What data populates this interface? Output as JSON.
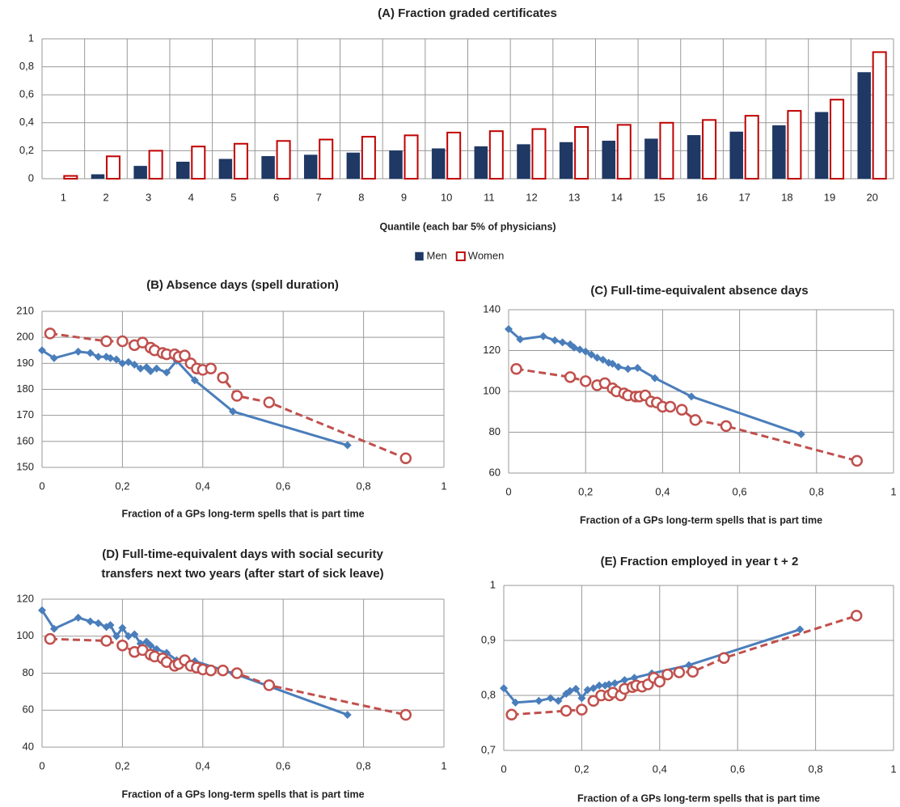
{
  "chart_data": [
    {
      "type": "bar",
      "title": "(A) Fraction graded certificates",
      "x_label": "Quantile (each bar 5% of physicians)",
      "categories": [
        "1",
        "2",
        "3",
        "4",
        "5",
        "6",
        "7",
        "8",
        "9",
        "10",
        "11",
        "12",
        "13",
        "14",
        "15",
        "16",
        "17",
        "18",
        "19",
        "20"
      ],
      "series": [
        {
          "name": "Men",
          "color": "#1f3864",
          "values": [
            0,
            0.03,
            0.09,
            0.12,
            0.14,
            0.16,
            0.17,
            0.185,
            0.2,
            0.215,
            0.23,
            0.245,
            0.26,
            0.27,
            0.285,
            0.31,
            0.335,
            0.38,
            0.475,
            0.76
          ]
        },
        {
          "name": "Women",
          "color": "#c00000",
          "values": [
            0.02,
            0.16,
            0.2,
            0.23,
            0.25,
            0.27,
            0.28,
            0.3,
            0.31,
            0.33,
            0.34,
            0.355,
            0.37,
            0.385,
            0.4,
            0.42,
            0.45,
            0.485,
            0.565,
            0.905
          ]
        }
      ],
      "ylim": [
        0,
        1
      ],
      "yticks": [
        0,
        {
          "value": 0.2,
          "label": "0,2"
        },
        {
          "value": 0.4,
          "label": "0,4"
        },
        {
          "value": 0.6,
          "label": "0,6"
        },
        {
          "value": 0.8,
          "label": "0,8"
        },
        1
      ],
      "grid": true,
      "legend": "bottom"
    },
    {
      "type": "line",
      "title": "(B) Absence days (spell duration)",
      "x_label": "Fraction of a GPs long-term spells that is part time",
      "series": [
        {
          "color": "#4a7ebb",
          "marker": "diamond",
          "dashed": false,
          "x": [
            0,
            0.03,
            0.09,
            0.12,
            0.14,
            0.16,
            0.17,
            0.185,
            0.2,
            0.215,
            0.23,
            0.245,
            0.26,
            0.27,
            0.285,
            0.31,
            0.335,
            0.38,
            0.475,
            0.76
          ],
          "values": [
            195,
            192,
            194.5,
            194,
            192.5,
            192.5,
            192,
            191.5,
            190,
            190.5,
            189.5,
            188,
            188.5,
            187,
            188,
            186.5,
            191,
            183.5,
            171.5,
            158.5
          ]
        },
        {
          "color": "#c0504d",
          "marker": "circle",
          "dashed": true,
          "x": [
            0.02,
            0.16,
            0.2,
            0.23,
            0.25,
            0.27,
            0.28,
            0.3,
            0.31,
            0.33,
            0.34,
            0.355,
            0.37,
            0.385,
            0.4,
            0.42,
            0.45,
            0.485,
            0.565,
            0.905
          ],
          "values": [
            201.5,
            198.5,
            198.5,
            197,
            198,
            196,
            195,
            194,
            193.5,
            193.5,
            192.5,
            193,
            190,
            188,
            187.5,
            188,
            184.5,
            177.5,
            175,
            153.5
          ]
        }
      ],
      "xlim": [
        0,
        1
      ],
      "xticks": [
        0,
        {
          "value": 0.2,
          "label": "0,2"
        },
        {
          "value": 0.4,
          "label": "0,4"
        },
        {
          "value": 0.6,
          "label": "0,6"
        },
        {
          "value": 0.8,
          "label": "0,8"
        },
        1
      ],
      "ylim": [
        150,
        210
      ],
      "yticks": [
        150,
        160,
        170,
        180,
        190,
        200,
        210
      ],
      "grid": true
    },
    {
      "type": "line",
      "title": "(C) Full-time-equivalent absence days",
      "x_label": "Fraction of a GPs long-term spells that is part time",
      "series": [
        {
          "color": "#4a7ebb",
          "marker": "diamond",
          "dashed": false,
          "x": [
            0,
            0.03,
            0.09,
            0.12,
            0.14,
            0.16,
            0.17,
            0.185,
            0.2,
            0.215,
            0.23,
            0.245,
            0.26,
            0.27,
            0.285,
            0.31,
            0.335,
            0.38,
            0.475,
            0.76
          ],
          "values": [
            130.5,
            125.5,
            127,
            125,
            124,
            123,
            121.5,
            120.5,
            119.5,
            118,
            116.5,
            115.5,
            114,
            113.5,
            112,
            111,
            111.5,
            106.5,
            97.5,
            79
          ]
        },
        {
          "color": "#c0504d",
          "marker": "circle",
          "dashed": true,
          "x": [
            0.02,
            0.16,
            0.2,
            0.23,
            0.25,
            0.27,
            0.28,
            0.3,
            0.31,
            0.33,
            0.34,
            0.355,
            0.37,
            0.385,
            0.4,
            0.42,
            0.45,
            0.485,
            0.565,
            0.905
          ],
          "values": [
            111,
            107,
            105,
            103,
            104,
            101.5,
            100,
            99,
            98,
            97.5,
            97.5,
            98,
            95,
            94.5,
            92.5,
            92.5,
            91,
            86,
            83,
            66
          ]
        }
      ],
      "xlim": [
        0,
        1
      ],
      "xticks": [
        0,
        {
          "value": 0.2,
          "label": "0,2"
        },
        {
          "value": 0.4,
          "label": "0,4"
        },
        {
          "value": 0.6,
          "label": "0,6"
        },
        {
          "value": 0.8,
          "label": "0,8"
        },
        1
      ],
      "ylim": [
        60,
        140
      ],
      "yticks": [
        60,
        80,
        100,
        120,
        140
      ],
      "grid": true
    },
    {
      "type": "line",
      "title": [
        "(D) Full-time-equivalent days with social security",
        "transfers next two years (after start of sick leave)"
      ],
      "x_label": "Fraction of a GPs long-term spells that is part time",
      "series": [
        {
          "color": "#4a7ebb",
          "marker": "diamond",
          "dashed": false,
          "x": [
            0,
            0.03,
            0.09,
            0.12,
            0.14,
            0.16,
            0.17,
            0.185,
            0.2,
            0.215,
            0.23,
            0.245,
            0.26,
            0.27,
            0.285,
            0.31,
            0.335,
            0.38,
            0.475,
            0.76
          ],
          "values": [
            114,
            104,
            110,
            108,
            107,
            105,
            106,
            100,
            104.5,
            100,
            101,
            96,
            97,
            95,
            93,
            91,
            87,
            86.5,
            80,
            57.5
          ]
        },
        {
          "color": "#c0504d",
          "marker": "circle",
          "dashed": true,
          "x": [
            0.02,
            0.16,
            0.2,
            0.23,
            0.25,
            0.27,
            0.28,
            0.3,
            0.31,
            0.33,
            0.34,
            0.355,
            0.37,
            0.385,
            0.4,
            0.42,
            0.45,
            0.485,
            0.565,
            0.905
          ],
          "values": [
            98.5,
            97.5,
            95,
            91.5,
            92.5,
            90,
            89,
            88,
            86,
            84,
            85,
            87,
            84,
            83,
            82,
            81.5,
            81.5,
            80,
            73.5,
            57.5
          ]
        }
      ],
      "xlim": [
        0,
        1
      ],
      "xticks": [
        0,
        {
          "value": 0.2,
          "label": "0,2"
        },
        {
          "value": 0.4,
          "label": "0,4"
        },
        {
          "value": 0.6,
          "label": "0,6"
        },
        {
          "value": 0.8,
          "label": "0,8"
        },
        1
      ],
      "ylim": [
        40,
        120
      ],
      "yticks": [
        40,
        60,
        80,
        100,
        120
      ],
      "grid": true
    },
    {
      "type": "line",
      "title": "(E) Fraction employed in year t + 2",
      "x_label": "Fraction of a GPs long-term spells that is part time",
      "series": [
        {
          "color": "#4a7ebb",
          "marker": "diamond",
          "dashed": false,
          "x": [
            0,
            0.03,
            0.09,
            0.12,
            0.14,
            0.16,
            0.17,
            0.185,
            0.2,
            0.215,
            0.23,
            0.245,
            0.26,
            0.27,
            0.285,
            0.31,
            0.335,
            0.38,
            0.475,
            0.76
          ],
          "values": [
            0.813,
            0.787,
            0.79,
            0.795,
            0.79,
            0.803,
            0.808,
            0.812,
            0.795,
            0.81,
            0.813,
            0.818,
            0.818,
            0.82,
            0.822,
            0.828,
            0.832,
            0.84,
            0.855,
            0.92
          ]
        },
        {
          "color": "#c0504d",
          "marker": "circle",
          "dashed": true,
          "x": [
            0.02,
            0.16,
            0.2,
            0.23,
            0.25,
            0.27,
            0.28,
            0.3,
            0.31,
            0.33,
            0.34,
            0.355,
            0.37,
            0.385,
            0.4,
            0.42,
            0.45,
            0.485,
            0.565,
            0.905
          ],
          "values": [
            0.765,
            0.772,
            0.774,
            0.79,
            0.8,
            0.8,
            0.805,
            0.8,
            0.812,
            0.815,
            0.818,
            0.816,
            0.82,
            0.832,
            0.825,
            0.838,
            0.842,
            0.843,
            0.868,
            0.945
          ]
        }
      ],
      "xlim": [
        0,
        1
      ],
      "xticks": [
        0,
        {
          "value": 0.2,
          "label": "0,2"
        },
        {
          "value": 0.4,
          "label": "0,4"
        },
        {
          "value": 0.6,
          "label": "0,6"
        },
        {
          "value": 0.8,
          "label": "0,8"
        },
        1
      ],
      "ylim": [
        0.7,
        1
      ],
      "yticks": [
        {
          "value": 0.7,
          "label": "0,7"
        },
        {
          "value": 0.8,
          "label": "0,8"
        },
        {
          "value": 0.9,
          "label": "0,9"
        },
        1
      ],
      "grid": true
    }
  ]
}
